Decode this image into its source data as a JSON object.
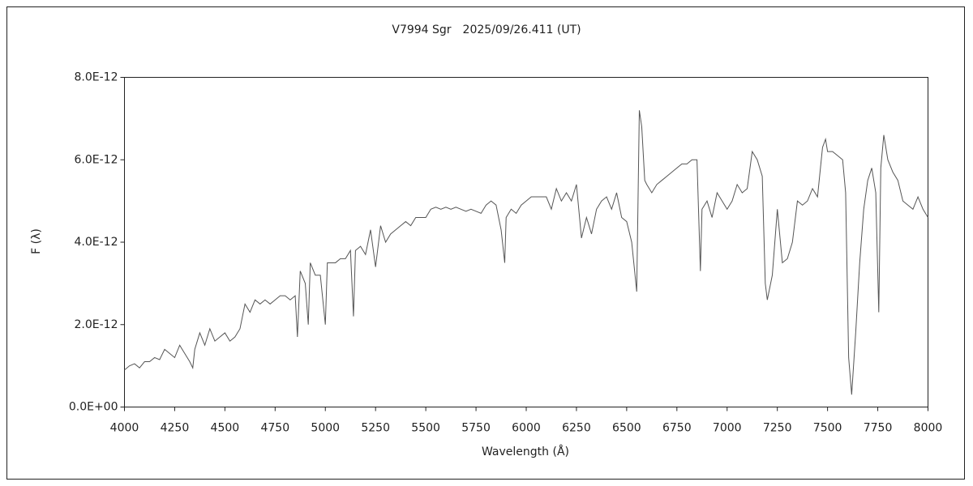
{
  "chart_data": {
    "type": "line",
    "title": "V7994 Sgr　2025/09/26.411 (UT)",
    "x_label": "Wavelength (Å)",
    "y_label": "F (λ)",
    "xlim": [
      4000,
      8000
    ],
    "xticks": [
      4000,
      4250,
      4500,
      4750,
      5000,
      5250,
      5500,
      5750,
      6000,
      6250,
      6500,
      6750,
      7000,
      7250,
      7500,
      7750,
      8000
    ],
    "ylim": [
      0,
      8e-12
    ],
    "yticks": [
      {
        "value": 0,
        "label": "0.0E+00"
      },
      {
        "value": 2e-12,
        "label": "2.0E-12"
      },
      {
        "value": 4e-12,
        "label": "4.0E-12"
      },
      {
        "value": 6e-12,
        "label": "6.0E-12"
      },
      {
        "value": 8e-12,
        "label": "8.0E-12"
      }
    ],
    "grid": false,
    "series": [
      {
        "color": "#555555",
        "x": [
          4000,
          4025,
          4050,
          4075,
          4100,
          4125,
          4150,
          4175,
          4200,
          4225,
          4250,
          4275,
          4300,
          4325,
          4340,
          4350,
          4375,
          4400,
          4425,
          4450,
          4475,
          4500,
          4525,
          4550,
          4575,
          4600,
          4625,
          4650,
          4675,
          4700,
          4725,
          4750,
          4775,
          4800,
          4825,
          4850,
          4861,
          4875,
          4900,
          4915,
          4925,
          4950,
          4975,
          5000,
          5010,
          5025,
          5050,
          5075,
          5100,
          5125,
          5140,
          5150,
          5175,
          5200,
          5225,
          5250,
          5275,
          5300,
          5325,
          5350,
          5375,
          5400,
          5425,
          5450,
          5475,
          5500,
          5525,
          5550,
          5575,
          5600,
          5625,
          5650,
          5675,
          5700,
          5725,
          5750,
          5775,
          5800,
          5825,
          5850,
          5875,
          5893,
          5900,
          5925,
          5950,
          5975,
          6000,
          6025,
          6050,
          6075,
          6100,
          6125,
          6150,
          6175,
          6200,
          6225,
          6250,
          6275,
          6300,
          6325,
          6350,
          6375,
          6400,
          6425,
          6450,
          6475,
          6500,
          6525,
          6550,
          6563,
          6575,
          6590,
          6600,
          6625,
          6650,
          6675,
          6700,
          6725,
          6750,
          6775,
          6800,
          6825,
          6850,
          6867,
          6875,
          6900,
          6925,
          6950,
          6975,
          7000,
          7025,
          7050,
          7075,
          7100,
          7125,
          7150,
          7175,
          7190,
          7200,
          7225,
          7250,
          7275,
          7300,
          7325,
          7350,
          7375,
          7400,
          7425,
          7450,
          7475,
          7490,
          7500,
          7525,
          7550,
          7575,
          7590,
          7605,
          7620,
          7640,
          7660,
          7680,
          7700,
          7720,
          7740,
          7755,
          7765,
          7780,
          7800,
          7825,
          7850,
          7875,
          7900,
          7925,
          7950,
          7975,
          8000
        ],
        "values": [
          9e-13,
          1e-12,
          1.05e-12,
          9.5e-13,
          1.1e-12,
          1.1e-12,
          1.2e-12,
          1.15e-12,
          1.4e-12,
          1.3e-12,
          1.2e-12,
          1.5e-12,
          1.3e-12,
          1.1e-12,
          9.5e-13,
          1.4e-12,
          1.8e-12,
          1.5e-12,
          1.9e-12,
          1.6e-12,
          1.7e-12,
          1.8e-12,
          1.6e-12,
          1.7e-12,
          1.9e-12,
          2.5e-12,
          2.3e-12,
          2.6e-12,
          2.5e-12,
          2.6e-12,
          2.5e-12,
          2.6e-12,
          2.7e-12,
          2.7e-12,
          2.6e-12,
          2.7e-12,
          1.7e-12,
          3.3e-12,
          3e-12,
          2e-12,
          3.5e-12,
          3.2e-12,
          3.2e-12,
          2e-12,
          3.5e-12,
          3.5e-12,
          3.5e-12,
          3.6e-12,
          3.6e-12,
          3.8e-12,
          2.2e-12,
          3.8e-12,
          3.9e-12,
          3.7e-12,
          4.3e-12,
          3.4e-12,
          4.4e-12,
          4e-12,
          4.2e-12,
          4.3e-12,
          4.4e-12,
          4.5e-12,
          4.4e-12,
          4.6e-12,
          4.6e-12,
          4.6e-12,
          4.8e-12,
          4.85e-12,
          4.8e-12,
          4.85e-12,
          4.8e-12,
          4.85e-12,
          4.8e-12,
          4.75e-12,
          4.8e-12,
          4.75e-12,
          4.7e-12,
          4.9e-12,
          5e-12,
          4.9e-12,
          4.3e-12,
          3.5e-12,
          4.6e-12,
          4.8e-12,
          4.7e-12,
          4.9e-12,
          5e-12,
          5.1e-12,
          5.1e-12,
          5.1e-12,
          5.1e-12,
          4.8e-12,
          5.3e-12,
          5e-12,
          5.2e-12,
          5e-12,
          5.4e-12,
          4.1e-12,
          4.6e-12,
          4.2e-12,
          4.8e-12,
          5e-12,
          5.1e-12,
          4.8e-12,
          5.2e-12,
          4.6e-12,
          4.5e-12,
          4e-12,
          2.8e-12,
          7.2e-12,
          6.8e-12,
          5.5e-12,
          5.4e-12,
          5.2e-12,
          5.4e-12,
          5.5e-12,
          5.6e-12,
          5.7e-12,
          5.8e-12,
          5.9e-12,
          5.9e-12,
          6e-12,
          6e-12,
          3.3e-12,
          4.8e-12,
          5e-12,
          4.6e-12,
          5.2e-12,
          5e-12,
          4.8e-12,
          5e-12,
          5.4e-12,
          5.2e-12,
          5.3e-12,
          6.2e-12,
          6e-12,
          5.6e-12,
          3e-12,
          2.6e-12,
          3.2e-12,
          4.8e-12,
          3.5e-12,
          3.6e-12,
          4e-12,
          5e-12,
          4.9e-12,
          5e-12,
          5.3e-12,
          5.1e-12,
          6.3e-12,
          6.5e-12,
          6.2e-12,
          6.2e-12,
          6.1e-12,
          6e-12,
          5.2e-12,
          1.2e-12,
          3e-13,
          1.8e-12,
          3.5e-12,
          4.8e-12,
          5.5e-12,
          5.8e-12,
          5.2e-12,
          2.3e-12,
          5.8e-12,
          6.6e-12,
          6e-12,
          5.7e-12,
          5.5e-12,
          5e-12,
          4.9e-12,
          4.8e-12,
          5.1e-12,
          4.8e-12,
          4.6e-12
        ]
      }
    ]
  }
}
